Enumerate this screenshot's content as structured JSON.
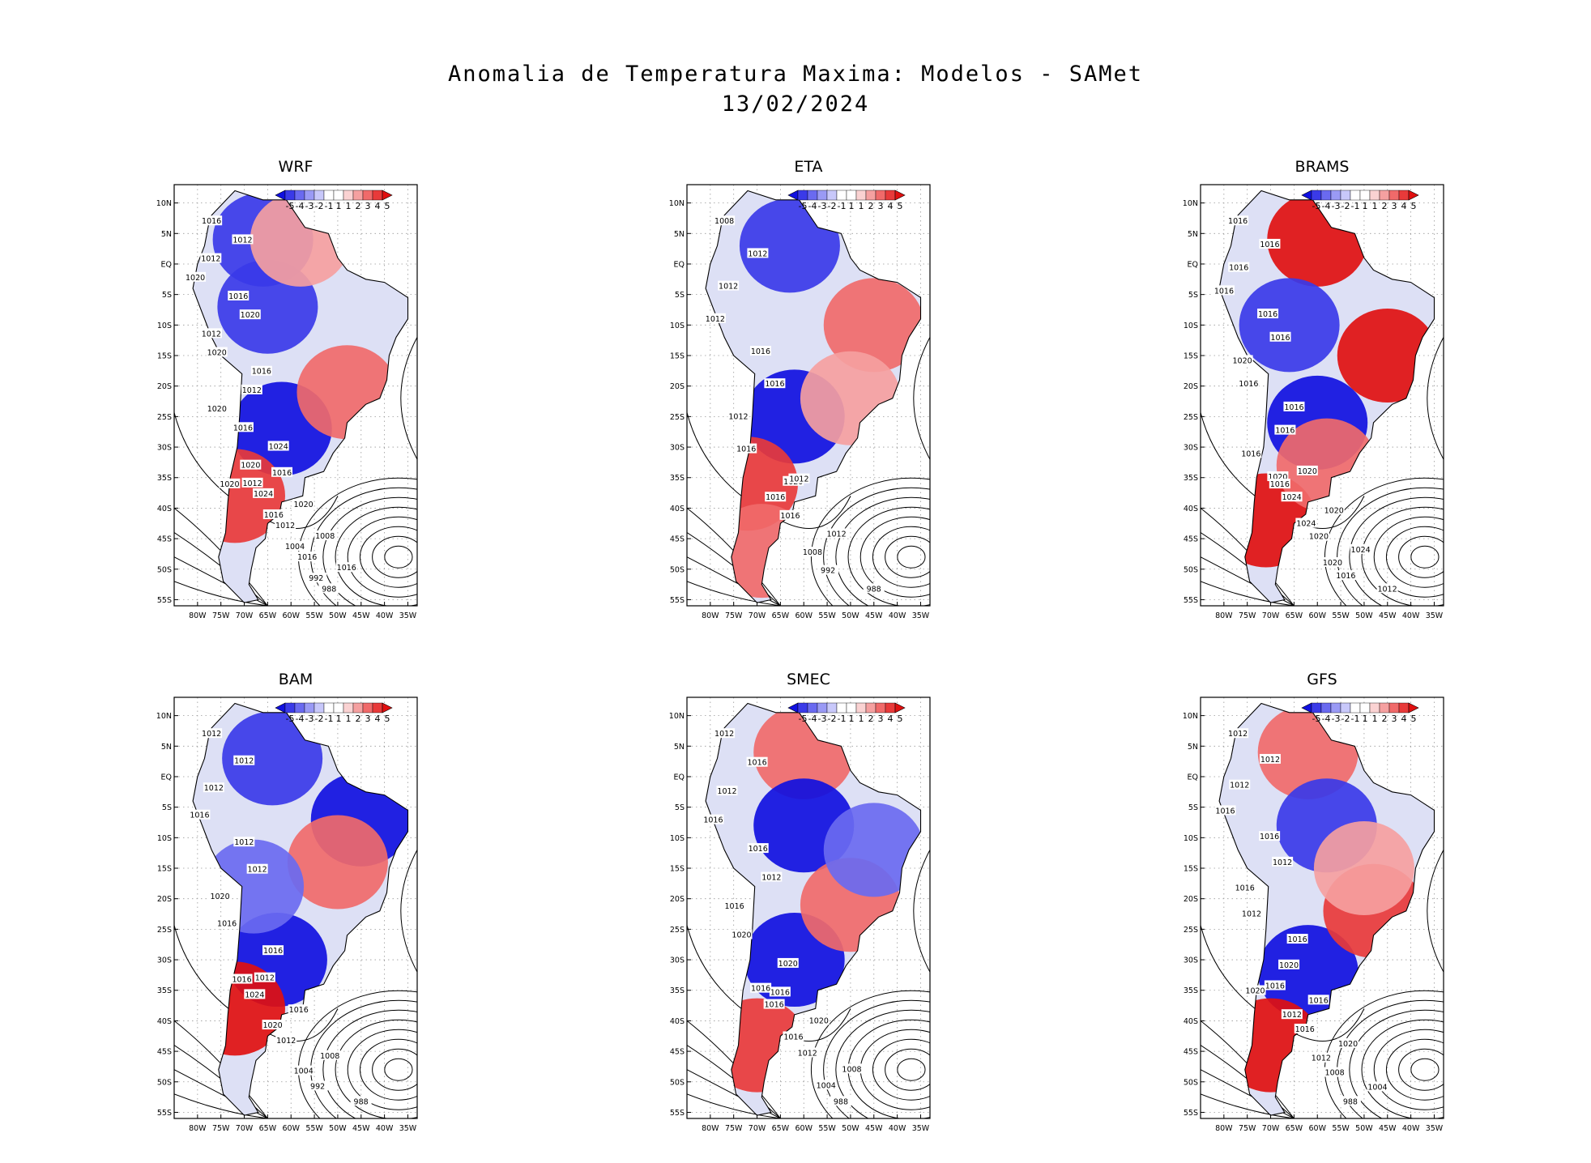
{
  "figure": {
    "title": "Anomalia de Temperatura Maxima: Modelos - SAMet",
    "date": "13/02/2024"
  },
  "colorbar": {
    "labels": [
      "-5",
      "-4",
      "-3",
      "-2",
      "-1",
      "1",
      "1",
      "2",
      "3",
      "4",
      "5"
    ],
    "colors": [
      "#1010e0",
      "#3a3ae8",
      "#6a6af0",
      "#9a9af5",
      "#c8c8fa",
      "#ffffff",
      "#ffffff",
      "#fad2d2",
      "#f5a0a0",
      "#f06a6a",
      "#e83a3a",
      "#e01010"
    ]
  },
  "axes": {
    "lat_labels": [
      "10N",
      "5N",
      "EQ",
      "5S",
      "10S",
      "15S",
      "20S",
      "25S",
      "30S",
      "35S",
      "40S",
      "45S",
      "50S",
      "55S"
    ],
    "lon_labels": [
      "80W",
      "75W",
      "70W",
      "65W",
      "60W",
      "55W",
      "50W",
      "45W",
      "40W",
      "35W"
    ]
  },
  "panels": [
    {
      "model": "WRF",
      "isobar_labels": [
        "1016",
        "1012",
        "1012",
        "1020",
        "1016",
        "1020",
        "1012",
        "1020",
        "1016",
        "1012",
        "1020",
        "1016",
        "1024",
        "1020",
        "1020",
        "1016",
        "1012",
        "1024",
        "1020",
        "1016",
        "1012",
        "1008",
        "1004",
        "1016",
        "1016",
        "992",
        "988"
      ],
      "regions": [
        {
          "anomaly": -4,
          "lat": 4,
          "lon": -66
        },
        {
          "anomaly": -4,
          "lat": -7,
          "lon": -65
        },
        {
          "anomaly": -5,
          "lat": -27,
          "lon": -62
        },
        {
          "anomaly": 3,
          "lat": -21,
          "lon": -48
        },
        {
          "anomaly": 2,
          "lat": 4,
          "lon": -58
        },
        {
          "anomaly": 4,
          "lat": -38,
          "lon": -72
        }
      ]
    },
    {
      "model": "ETA",
      "isobar_labels": [
        "1008",
        "1012",
        "1012",
        "1012",
        "1016",
        "1016",
        "1012",
        "1016",
        "1020",
        "1012",
        "1016",
        "1016",
        "1012",
        "1008",
        "992",
        "988"
      ],
      "regions": [
        {
          "anomaly": -4,
          "lat": 3,
          "lon": -63
        },
        {
          "anomaly": -5,
          "lat": -25,
          "lon": -62
        },
        {
          "anomaly": 3,
          "lat": -10,
          "lon": -45
        },
        {
          "anomaly": 2,
          "lat": -22,
          "lon": -50
        },
        {
          "anomaly": 4,
          "lat": -36,
          "lon": -72
        },
        {
          "anomaly": 3,
          "lat": -47,
          "lon": -69
        }
      ]
    },
    {
      "model": "BRAMS",
      "isobar_labels": [
        "1016",
        "1016",
        "1016",
        "1016",
        "1016",
        "1016",
        "1020",
        "1016",
        "1016",
        "1016",
        "1016",
        "1020",
        "1020",
        "1016",
        "1024",
        "1020",
        "1024",
        "1020",
        "1024",
        "1020",
        "1016",
        "1012"
      ],
      "regions": [
        {
          "anomaly": 5,
          "lat": 4,
          "lon": -60
        },
        {
          "anomaly": 5,
          "lat": -15,
          "lon": -45
        },
        {
          "anomaly": -4,
          "lat": -10,
          "lon": -66
        },
        {
          "anomaly": -5,
          "lat": -26,
          "lon": -60
        },
        {
          "anomaly": 5,
          "lat": -42,
          "lon": -71
        },
        {
          "anomaly": 3,
          "lat": -33,
          "lon": -58
        }
      ]
    },
    {
      "model": "BAM",
      "isobar_labels": [
        "1012",
        "1012",
        "1012",
        "1016",
        "1012",
        "1012",
        "1020",
        "1016",
        "1016",
        "1012",
        "1016",
        "1024",
        "1016",
        "1020",
        "1012",
        "1008",
        "1004",
        "992",
        "988"
      ],
      "regions": [
        {
          "anomaly": -4,
          "lat": 3,
          "lon": -64
        },
        {
          "anomaly": -5,
          "lat": -7,
          "lon": -45
        },
        {
          "anomaly": -5,
          "lat": -30,
          "lon": -63
        },
        {
          "anomaly": 3,
          "lat": -14,
          "lon": -50
        },
        {
          "anomaly": 5,
          "lat": -38,
          "lon": -72
        },
        {
          "anomaly": -3,
          "lat": -18,
          "lon": -68
        }
      ]
    },
    {
      "model": "SMEC",
      "isobar_labels": [
        "1012",
        "1016",
        "1012",
        "1016",
        "1016",
        "1012",
        "1016",
        "1020",
        "1020",
        "1016",
        "1016",
        "1016",
        "1020",
        "1016",
        "1012",
        "1008",
        "1004",
        "988"
      ],
      "regions": [
        {
          "anomaly": 3,
          "lat": 4,
          "lon": -60
        },
        {
          "anomaly": -5,
          "lat": -8,
          "lon": -60
        },
        {
          "anomaly": -5,
          "lat": -30,
          "lon": -62
        },
        {
          "anomaly": 3,
          "lat": -21,
          "lon": -50
        },
        {
          "anomaly": 4,
          "lat": -44,
          "lon": -70
        },
        {
          "anomaly": -3,
          "lat": -12,
          "lon": -45
        }
      ]
    },
    {
      "model": "GFS",
      "isobar_labels": [
        "1012",
        "1012",
        "1012",
        "1016",
        "1016",
        "1012",
        "1016",
        "1012",
        "1016",
        "1020",
        "1020",
        "1016",
        "1016",
        "1012",
        "1016",
        "1020",
        "1012",
        "1008",
        "1004",
        "988"
      ],
      "regions": [
        {
          "anomaly": 3,
          "lat": 4,
          "lon": -62
        },
        {
          "anomaly": -4,
          "lat": -8,
          "lon": -58
        },
        {
          "anomaly": -5,
          "lat": -32,
          "lon": -62
        },
        {
          "anomaly": 4,
          "lat": -22,
          "lon": -48
        },
        {
          "anomaly": 5,
          "lat": -44,
          "lon": -70
        },
        {
          "anomaly": 2,
          "lat": -15,
          "lon": -50
        }
      ]
    }
  ]
}
